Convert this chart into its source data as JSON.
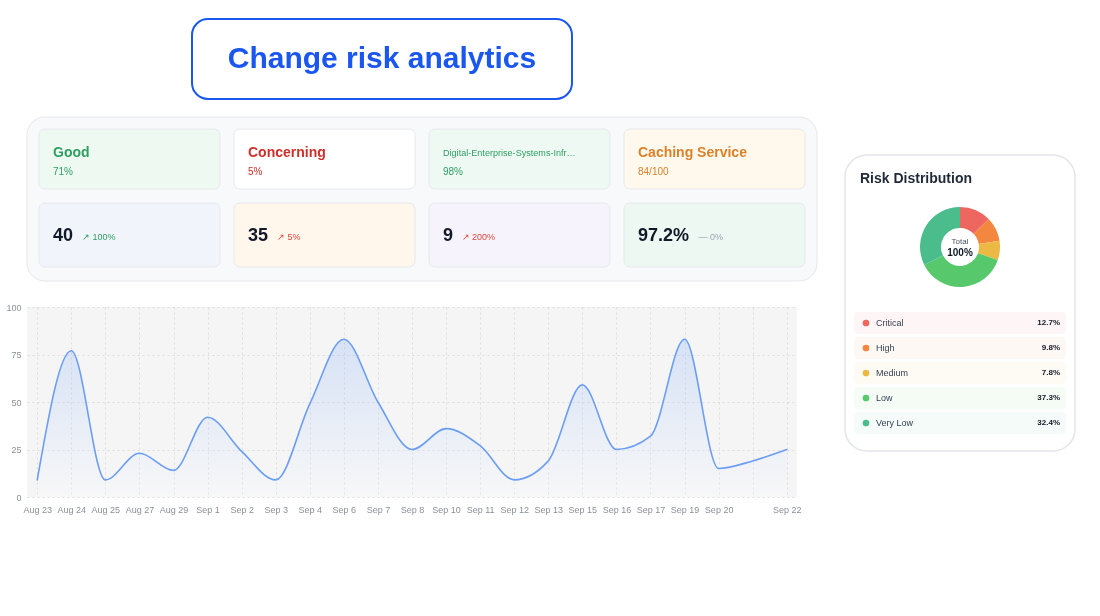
{
  "chart_data": [
    {
      "type": "other",
      "title": "Change risk analytics",
      "annotations": [
        "Good",
        "71%",
        "Concerning",
        "5%",
        "Digital-Enterprise-Systems-Infr…",
        "98%",
        "Caching Service",
        "84/100",
        "40",
        "↗ 100%",
        "35",
        "↗ 5%",
        "9",
        "↗ 200%",
        "97.2%",
        "— 0%"
      ]
    },
    {
      "type": "area",
      "categories": [
        "Aug 23",
        "Aug 24",
        "Aug 25",
        "Aug 27",
        "Aug 29",
        "Sep 1",
        "Sep 2",
        "Sep 3",
        "Sep 4",
        "Sep 6",
        "Sep 7",
        "Sep 8",
        "Sep 10",
        "Sep 11",
        "Sep 12",
        "Sep 13",
        "Sep 15",
        "Sep 16",
        "Sep 17",
        "Sep 19",
        "Sep 20",
        null,
        "Sep 22"
      ],
      "series": [
        {
          "color": "#6b9ef3",
          "values": [
            9,
            77,
            9,
            23,
            14,
            42,
            24,
            9,
            49,
            83,
            50,
            25,
            36,
            27,
            9,
            19,
            59,
            25,
            32,
            83,
            15,
            19,
            25
          ]
        }
      ],
      "ylim": [
        0,
        100
      ],
      "yticks": [
        0,
        25,
        50,
        75,
        100
      ],
      "grid": true
    },
    {
      "type": "donut",
      "title": "Risk Distribution",
      "categories": [
        "Critical",
        "High",
        "Medium",
        "Low",
        "Very Low"
      ],
      "values": [
        12.7,
        9.8,
        7.8,
        37.3,
        32.4
      ],
      "colors": [
        "#ee6660",
        "#f4873f",
        "#ecb944",
        "#57c96c",
        "#4bbd8c"
      ],
      "value_labels": [
        "12.7%",
        "9.8%",
        "7.8%",
        "37.3%",
        "32.4%"
      ],
      "annotations": [
        "Total",
        "100%"
      ],
      "legend": "bottom"
    }
  ]
}
